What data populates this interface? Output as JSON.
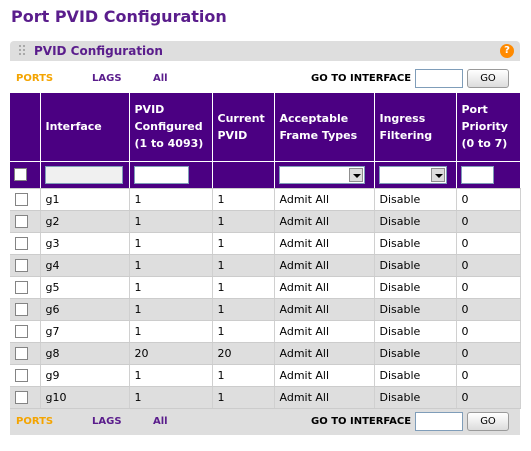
{
  "page": {
    "title": "Port PVID Configuration"
  },
  "section": {
    "title": "PVID Configuration",
    "help_icon": "?"
  },
  "nav": {
    "ports": "PORTS",
    "lags": "LAGS",
    "all": "All",
    "goto_label": "GO TO INTERFACE",
    "go_button": "GO"
  },
  "table": {
    "columns": [
      "Interface",
      "PVID Configured (1 to 4093)",
      "Current PVID",
      "Acceptable Frame Types",
      "Ingress Filtering",
      "Port Priority (0 to 7)"
    ],
    "rows": [
      {
        "interface": "g1",
        "pvid_configured": "1",
        "current_pvid": "1",
        "frame_types": "Admit All",
        "ingress": "Disable",
        "priority": "0"
      },
      {
        "interface": "g2",
        "pvid_configured": "1",
        "current_pvid": "1",
        "frame_types": "Admit All",
        "ingress": "Disable",
        "priority": "0"
      },
      {
        "interface": "g3",
        "pvid_configured": "1",
        "current_pvid": "1",
        "frame_types": "Admit All",
        "ingress": "Disable",
        "priority": "0"
      },
      {
        "interface": "g4",
        "pvid_configured": "1",
        "current_pvid": "1",
        "frame_types": "Admit All",
        "ingress": "Disable",
        "priority": "0"
      },
      {
        "interface": "g5",
        "pvid_configured": "1",
        "current_pvid": "1",
        "frame_types": "Admit All",
        "ingress": "Disable",
        "priority": "0"
      },
      {
        "interface": "g6",
        "pvid_configured": "1",
        "current_pvid": "1",
        "frame_types": "Admit All",
        "ingress": "Disable",
        "priority": "0"
      },
      {
        "interface": "g7",
        "pvid_configured": "1",
        "current_pvid": "1",
        "frame_types": "Admit All",
        "ingress": "Disable",
        "priority": "0"
      },
      {
        "interface": "g8",
        "pvid_configured": "20",
        "current_pvid": "20",
        "frame_types": "Admit All",
        "ingress": "Disable",
        "priority": "0"
      },
      {
        "interface": "g9",
        "pvid_configured": "1",
        "current_pvid": "1",
        "frame_types": "Admit All",
        "ingress": "Disable",
        "priority": "0"
      },
      {
        "interface": "g10",
        "pvid_configured": "1",
        "current_pvid": "1",
        "frame_types": "Admit All",
        "ingress": "Disable",
        "priority": "0"
      }
    ]
  },
  "colors": {
    "title": "#5a1d8c",
    "header_bg": "#4b0082",
    "active_link": "#f4a400",
    "stripe": "#dedede",
    "help_icon": "#ff8a00"
  }
}
